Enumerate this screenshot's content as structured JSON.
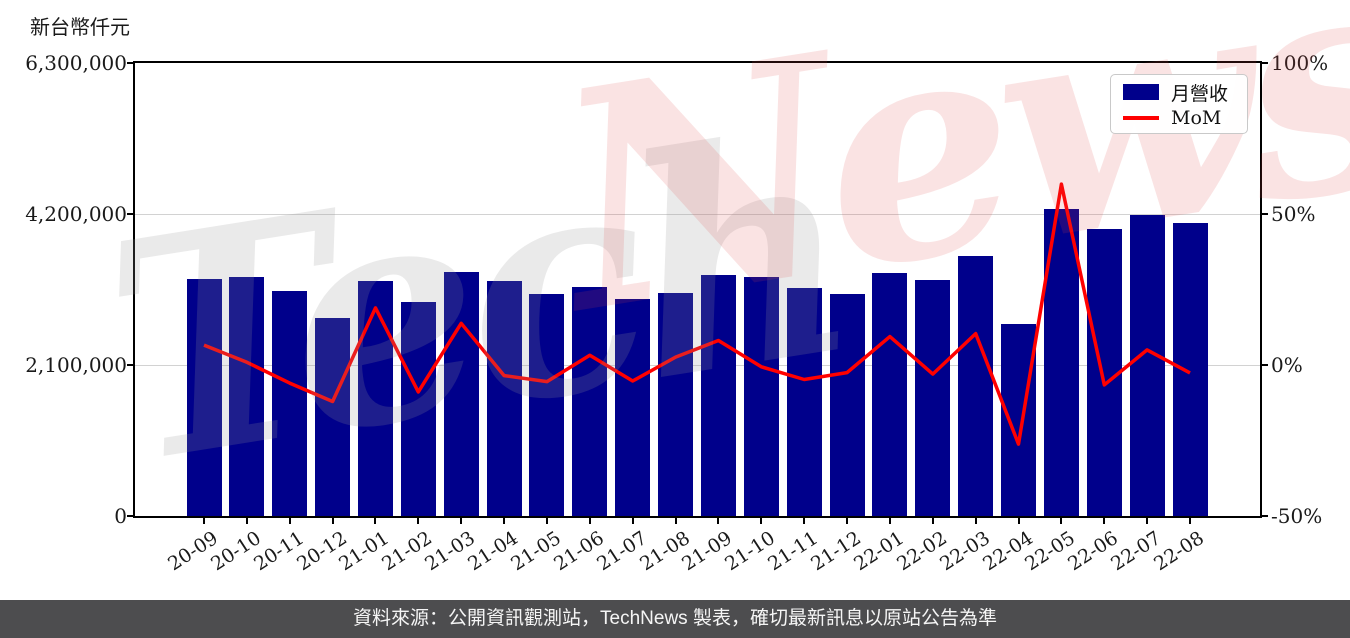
{
  "unit_label": "新台幣仟元",
  "legend": {
    "bar_label": "月營收",
    "line_label": "MoM"
  },
  "watermark": {
    "part1": "Tech",
    "part2": "News"
  },
  "footer": {
    "text": "資料來源：公開資訊觀測站，TechNews 製表，確切最新訊息以原站公告為準"
  },
  "colors": {
    "bar": "#00008B",
    "line": "#FF0000",
    "grid": "#D2D2D2",
    "spine": "#000000",
    "footer_bg": "#4D4D4F",
    "footer_text": "#F5F5F5",
    "watermark_gray": "rgba(150,150,150,0.20)",
    "watermark_pink": "rgba(220,70,70,0.15)"
  },
  "chart_data": {
    "type": "bar",
    "title": "",
    "categories": [
      "20-09",
      "20-10",
      "20-11",
      "20-12",
      "21-01",
      "21-02",
      "21-03",
      "21-04",
      "21-05",
      "21-06",
      "21-07",
      "21-08",
      "21-09",
      "21-10",
      "21-11",
      "21-12",
      "22-01",
      "22-02",
      "22-03",
      "22-04",
      "22-05",
      "22-06",
      "22-07",
      "22-08"
    ],
    "series": [
      {
        "name": "月營收",
        "type": "bar",
        "axis": "left",
        "unit": "新台幣仟元",
        "values": [
          3300000,
          3330000,
          3130000,
          2750000,
          3270000,
          2980000,
          3390000,
          3270000,
          3090000,
          3190000,
          3020000,
          3100000,
          3350000,
          3330000,
          3170000,
          3090000,
          3380000,
          3280000,
          3620000,
          2670000,
          4270000,
          3990000,
          4190000,
          4080000
        ]
      },
      {
        "name": "MoM",
        "type": "line",
        "axis": "right",
        "unit": "%",
        "values": [
          6.6,
          0.9,
          -6.0,
          -12.1,
          18.9,
          -8.9,
          13.8,
          -3.5,
          -5.5,
          3.2,
          -5.3,
          2.6,
          8.1,
          -0.6,
          -4.8,
          -2.5,
          9.4,
          -3.0,
          10.4,
          -26.2,
          59.9,
          -6.6,
          5.0,
          -2.6
        ]
      }
    ],
    "left_axis": {
      "label": "新台幣仟元",
      "tick_labels": [
        "0",
        "2,100,000",
        "4,200,000",
        "6,300,000"
      ],
      "tick_values": [
        0,
        2100000,
        4200000,
        6300000
      ],
      "range": [
        0,
        6300000
      ]
    },
    "right_axis": {
      "tick_labels": [
        "-50%",
        "0%",
        "50%",
        "100%"
      ],
      "tick_values": [
        -50,
        0,
        50,
        100
      ],
      "range": [
        -50,
        100
      ]
    },
    "grid": "horizontal",
    "legend_position": "top-right"
  }
}
